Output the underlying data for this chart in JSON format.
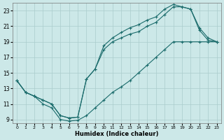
{
  "xlabel": "Humidex (Indice chaleur)",
  "bg_color": "#cce8e8",
  "line_color": "#1a6b6b",
  "grid_color": "#aacccc",
  "xlim": [
    -0.5,
    23.5
  ],
  "ylim": [
    8.5,
    24.0
  ],
  "xticks": [
    0,
    1,
    2,
    3,
    4,
    5,
    6,
    7,
    8,
    9,
    10,
    11,
    12,
    13,
    14,
    15,
    16,
    17,
    18,
    19,
    20,
    21,
    22,
    23
  ],
  "yticks": [
    9,
    11,
    13,
    15,
    17,
    19,
    21,
    23
  ],
  "line1_x": [
    0,
    1,
    2,
    3,
    4,
    5,
    6,
    7,
    8,
    9,
    10,
    11,
    12,
    13,
    14,
    15,
    16,
    17,
    18,
    19,
    20,
    21,
    22,
    23
  ],
  "line1_y": [
    14.0,
    12.5,
    12.0,
    11.0,
    10.5,
    9.0,
    8.8,
    8.9,
    9.5,
    10.5,
    11.5,
    12.5,
    13.2,
    14.0,
    15.0,
    16.0,
    17.0,
    18.0,
    19.0,
    19.0,
    19.0,
    19.0,
    19.0,
    19.0
  ],
  "line2_x": [
    0,
    1,
    2,
    3,
    4,
    5,
    6,
    7,
    8,
    9,
    10,
    11,
    12,
    13,
    14,
    15,
    16,
    17,
    18,
    19,
    20,
    21,
    22,
    23
  ],
  "line2_y": [
    14.0,
    12.5,
    12.0,
    11.5,
    11.0,
    9.5,
    9.2,
    9.3,
    14.2,
    15.5,
    18.0,
    19.0,
    19.5,
    20.0,
    20.3,
    21.0,
    21.5,
    22.5,
    23.5,
    23.5,
    23.2,
    20.5,
    19.2,
    19.0
  ],
  "line3_x": [
    0,
    1,
    2,
    3,
    4,
    5,
    6,
    7,
    8,
    9,
    10,
    11,
    12,
    13,
    14,
    15,
    16,
    17,
    18,
    19,
    20,
    21,
    22,
    23
  ],
  "line3_y": [
    14.0,
    12.5,
    12.0,
    11.5,
    11.0,
    9.5,
    9.2,
    9.3,
    14.2,
    15.5,
    18.5,
    19.5,
    20.2,
    20.8,
    21.2,
    21.8,
    22.2,
    23.2,
    23.8,
    23.5,
    23.2,
    20.8,
    19.5,
    19.0
  ]
}
